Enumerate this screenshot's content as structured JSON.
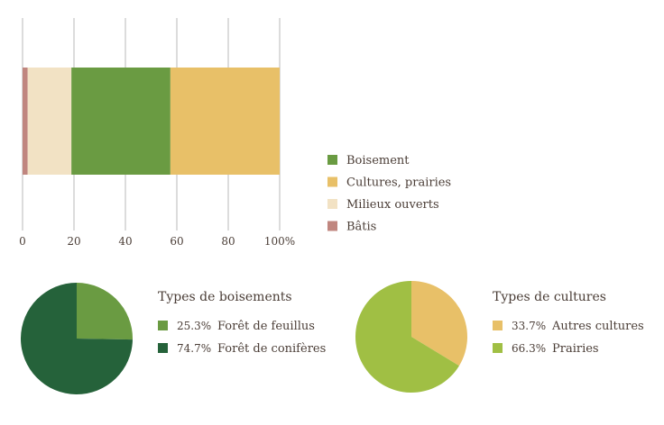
{
  "chart_data": [
    {
      "type": "bar",
      "orientation": "horizontal",
      "stacked": true,
      "categories": [
        ""
      ],
      "series": [
        {
          "name": "Bâtis",
          "values": [
            2
          ],
          "color": "#c0867f"
        },
        {
          "name": "Milieux ouverts",
          "values": [
            17
          ],
          "color": "#f2e2c4"
        },
        {
          "name": "Boisement",
          "values": [
            38.5
          ],
          "color": "#6a9b42"
        },
        {
          "name": "Cultures, prairies",
          "values": [
            42.5
          ],
          "color": "#e8c068"
        }
      ],
      "xlim": [
        0,
        100
      ],
      "xticks": [
        "0",
        "20",
        "40",
        "60",
        "80",
        "100%"
      ],
      "xtick_values": [
        0,
        20,
        40,
        60,
        80,
        100
      ],
      "grid": true,
      "legend": {
        "placement": "right",
        "order": [
          "Boisement",
          "Cultures, prairies",
          "Milieux ouverts",
          "Bâtis"
        ]
      }
    },
    {
      "type": "pie",
      "title": "Types de boisements",
      "slices": [
        {
          "label": "Forêt de feuillus",
          "value": 25.3,
          "pct_label": "25.3%",
          "color": "#6a9b42"
        },
        {
          "label": "Forêt de conifères",
          "value": 74.7,
          "pct_label": "74.7%",
          "color": "#25623a"
        }
      ]
    },
    {
      "type": "pie",
      "title": "Types de cultures",
      "slices": [
        {
          "label": "Autres cultures",
          "value": 33.7,
          "pct_label": "33.7%",
          "color": "#e8c068"
        },
        {
          "label": "Prairies",
          "value": 66.3,
          "pct_label": "66.3%",
          "color": "#a0bf44"
        }
      ]
    }
  ]
}
